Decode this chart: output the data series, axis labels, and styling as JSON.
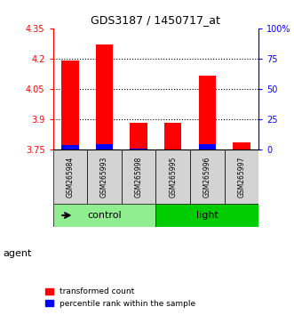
{
  "title": "GDS3187 / 1450717_at",
  "samples": [
    "GSM265984",
    "GSM265993",
    "GSM265998",
    "GSM265995",
    "GSM265996",
    "GSM265997"
  ],
  "groups": [
    "control",
    "control",
    "control",
    "light",
    "light",
    "light"
  ],
  "group_names": [
    "control",
    "light"
  ],
  "group_colors": [
    "#90EE90",
    "#00CC00"
  ],
  "red_values": [
    4.193,
    4.27,
    3.885,
    3.882,
    4.115,
    3.785
  ],
  "blue_values": [
    3.775,
    3.778,
    3.755,
    3.752,
    3.778,
    3.753
  ],
  "y_min": 3.75,
  "y_max": 4.35,
  "y_ticks_left": [
    3.75,
    3.9,
    4.05,
    4.2,
    4.35
  ],
  "y_ticks_right": [
    0,
    25,
    50,
    75,
    100
  ],
  "y_ticks_right_labels": [
    "0",
    "25",
    "50",
    "75",
    "100%"
  ],
  "left_axis_color": "red",
  "right_axis_color": "blue",
  "bar_width": 0.5,
  "agent_label": "agent",
  "legend_red": "transformed count",
  "legend_blue": "percentile rank within the sample",
  "sample_box_color": "#d3d3d3"
}
